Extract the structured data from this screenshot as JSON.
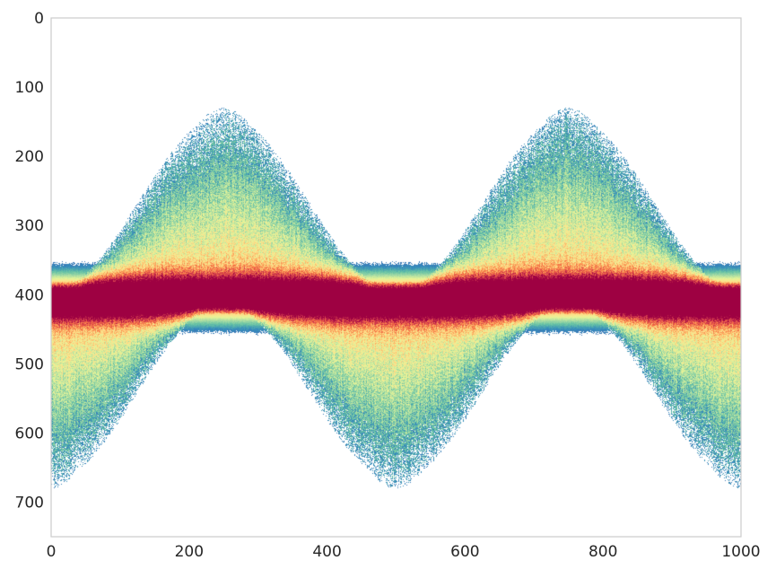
{
  "chart_data": {
    "type": "heatmap",
    "title": "",
    "xlabel": "",
    "ylabel": "",
    "xlim": [
      0,
      1000
    ],
    "ylim": [
      750,
      0
    ],
    "y_inverted": true,
    "grid": false,
    "legend": "none",
    "colormap": "Spectral_r",
    "colormap_stops": [
      "#5e4fa2",
      "#3288bd",
      "#66c2a5",
      "#abdda4",
      "#e6f598",
      "#fee08b",
      "#fdae61",
      "#f46d43",
      "#d53e4f",
      "#9e0142"
    ],
    "background_color": "#ffffff",
    "xticks": [
      {
        "value": 0,
        "label": "0"
      },
      {
        "value": 200,
        "label": "200"
      },
      {
        "value": 400,
        "label": "400"
      },
      {
        "value": 600,
        "label": "600"
      },
      {
        "value": 800,
        "label": "800"
      },
      {
        "value": 1000,
        "label": "1000"
      }
    ],
    "yticks": [
      {
        "value": 0,
        "label": "0"
      },
      {
        "value": 100,
        "label": "100"
      },
      {
        "value": 200,
        "label": "200"
      },
      {
        "value": 300,
        "label": "300"
      },
      {
        "value": 400,
        "label": "400"
      },
      {
        "value": 500,
        "label": "500"
      },
      {
        "value": 600,
        "label": "600"
      },
      {
        "value": 700,
        "label": "700"
      }
    ],
    "density_structure": {
      "center_band_y": 405,
      "central_band_halfwidth": 22,
      "sine_amplitude": 230,
      "sine_period_x": 500,
      "sine_phase_peak_x": 250,
      "outer_envelope_spread": 15
    }
  }
}
